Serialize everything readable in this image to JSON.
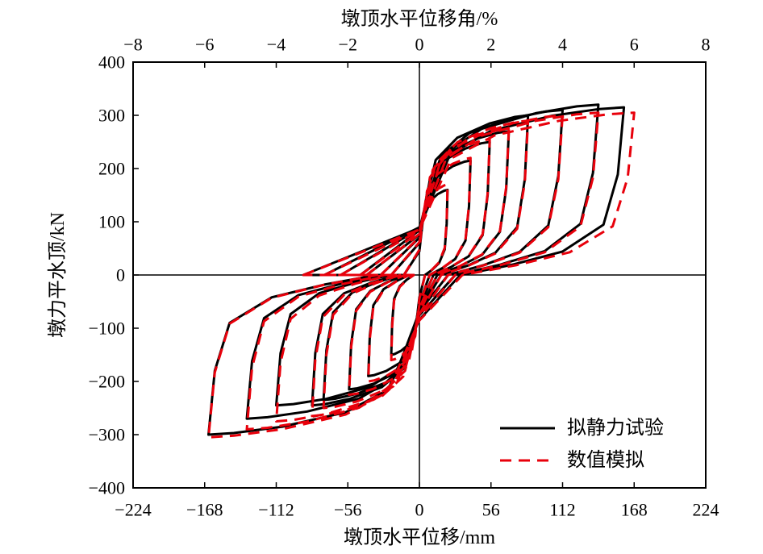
{
  "chart_data": {
    "type": "line",
    "x_bottom_label": "墩顶水平位移/mm",
    "x_top_label": "墩顶水平位移角/%",
    "y_label": "墩力平水顶/kN",
    "x_bottom_ticks": [
      "−224",
      "−168",
      "−112",
      "−56",
      "0",
      "56",
      "112",
      "168",
      "224"
    ],
    "x_bottom_tick_values": [
      -224,
      -168,
      -112,
      -56,
      0,
      56,
      112,
      168,
      224
    ],
    "x_top_ticks": [
      "−8",
      "−6",
      "−4",
      "−2",
      "0",
      "2",
      "4",
      "6",
      "8"
    ],
    "x_top_tick_values": [
      -8,
      -6,
      -4,
      -2,
      0,
      2,
      4,
      6,
      8
    ],
    "y_ticks": [
      "400",
      "300",
      "200",
      "100",
      "0",
      "−100",
      "−200",
      "−300",
      "−400"
    ],
    "y_tick_values": [
      400,
      300,
      200,
      100,
      0,
      -100,
      -200,
      -300,
      -400
    ],
    "xlim": [
      -224,
      224
    ],
    "ylim": [
      -400,
      400
    ],
    "legend_position": "bottom-right",
    "series": [
      {
        "name": "拟静力试验",
        "color": "#000000",
        "style": "solid",
        "loops": [
          {
            "xmax": 22,
            "ymax": 160,
            "xmin": -22,
            "ymin": -150
          },
          {
            "xmax": 40,
            "ymax": 215,
            "xmin": -40,
            "ymin": -190
          },
          {
            "xmax": 55,
            "ymax": 250,
            "xmin": -55,
            "ymin": -215
          },
          {
            "xmax": 70,
            "ymax": 270,
            "xmin": -75,
            "ymin": -235
          },
          {
            "xmax": 85,
            "ymax": 300,
            "xmin": -84,
            "ymin": -245
          },
          {
            "xmax": 112,
            "ymax": 310,
            "xmin": -112,
            "ymin": -245
          },
          {
            "xmax": 140,
            "ymax": 320,
            "xmin": -135,
            "ymin": -270
          },
          {
            "xmax": 160,
            "ymax": 315,
            "xmin": -165,
            "ymin": -300
          }
        ]
      },
      {
        "name": "数值模拟",
        "color": "#e8000b",
        "style": "dashed",
        "loops": [
          {
            "xmax": 22,
            "ymax": 170,
            "xmin": -22,
            "ymin": -160
          },
          {
            "xmax": 40,
            "ymax": 220,
            "xmin": -40,
            "ymin": -200
          },
          {
            "xmax": 55,
            "ymax": 255,
            "xmin": -55,
            "ymin": -225
          },
          {
            "xmax": 70,
            "ymax": 275,
            "xmin": -75,
            "ymin": -250
          },
          {
            "xmax": 85,
            "ymax": 290,
            "xmin": -84,
            "ymin": -265
          },
          {
            "xmax": 112,
            "ymax": 300,
            "xmin": -112,
            "ymin": -275
          },
          {
            "xmax": 140,
            "ymax": 305,
            "xmin": -135,
            "ymin": -290
          },
          {
            "xmax": 168,
            "ymax": 305,
            "xmin": -165,
            "ymin": -305
          }
        ]
      }
    ]
  }
}
